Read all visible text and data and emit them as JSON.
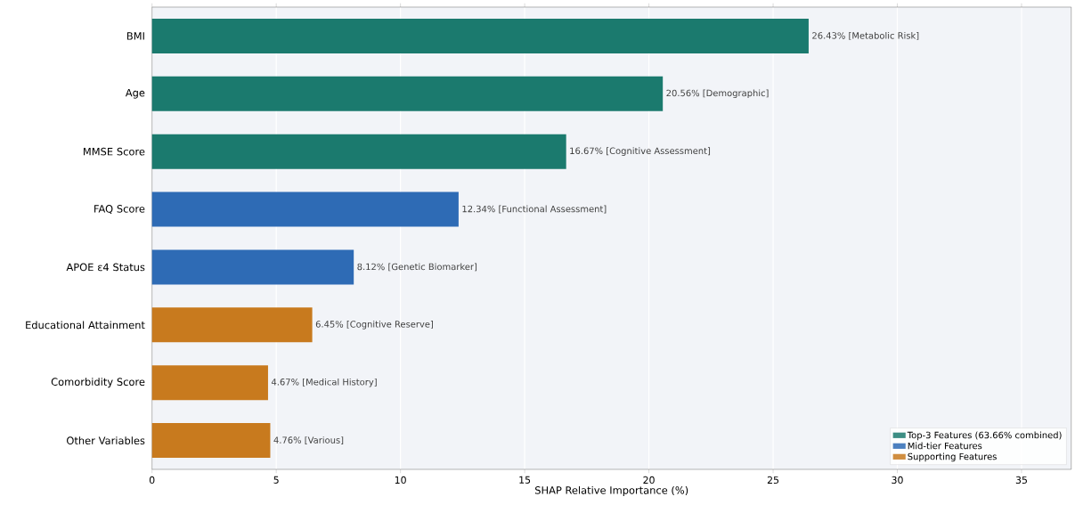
{
  "chart_data": {
    "type": "bar",
    "orientation": "horizontal",
    "xlabel": "SHAP Relative Importance (%)",
    "categories": [
      "BMI",
      "Age",
      "MMSE Score",
      "FAQ Score",
      "APOE ε4 Status",
      "Educational Attainment",
      "Comorbidity Score",
      "Other Variables"
    ],
    "series": [
      {
        "name": "Top-3 Features (63.66% combined)",
        "color": "#1b7a6e",
        "values": [
          26.43,
          20.56,
          16.67,
          null,
          null,
          null,
          null,
          null
        ],
        "value_labels": [
          "26.43%  [Metabolic Risk]",
          "20.56%  [Demographic]",
          "16.67%  [Cognitive Assessment]",
          null,
          null,
          null,
          null,
          null
        ]
      },
      {
        "name": "Mid-tier Features",
        "color": "#2e6bb5",
        "values": [
          null,
          null,
          null,
          12.34,
          8.12,
          null,
          null,
          null
        ],
        "value_labels": [
          null,
          null,
          null,
          "12.34%  [Functional Assessment]",
          "8.12%  [Genetic Biomarker]",
          null,
          null,
          null
        ]
      },
      {
        "name": "Supporting Features",
        "color": "#c87a1e",
        "values": [
          null,
          null,
          null,
          null,
          null,
          6.45,
          4.67,
          4.76
        ],
        "value_labels": [
          null,
          null,
          null,
          null,
          null,
          "6.45%  [Cognitive Reserve]",
          "4.67%  [Medical History]",
          "4.76%  [Various]"
        ]
      }
    ],
    "xlim": [
      0,
      37
    ],
    "xticks": [
      0,
      5,
      10,
      15,
      20,
      25,
      30,
      35
    ],
    "grid": "x",
    "legend": "bottom right"
  }
}
